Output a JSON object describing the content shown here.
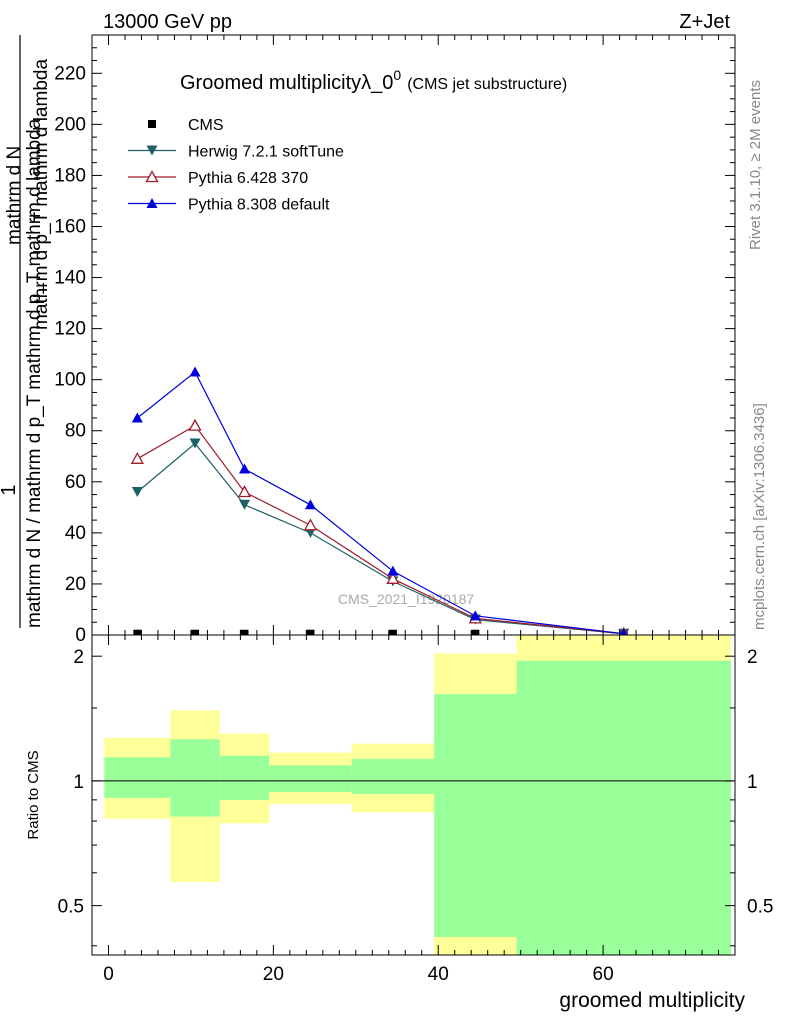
{
  "header": {
    "beam": "13000 GeV pp",
    "process": "Z+Jet",
    "title_main": "Groomed multiplicityλ_0",
    "title_sup": "0",
    "title_sub": "(CMS jet substructure)",
    "side_top": "Rivet 3.1.10, ≥ 2M events",
    "side_bottom": "mcplots.cern.ch [arXiv:1306.3436]",
    "watermark": "CMS_2021_I1920187"
  },
  "axes": {
    "ylabel_num": "1",
    "ylabel_den": "mathrm d N / mathrm d p_T mathrm d p_T mathrm d lambda",
    "ylabel_top_num": "mathrm d²N",
    "ylabel_top": "mathrm d N",
    "xlabel": "groomed multiplicity",
    "ratio_label": "Ratio to CMS"
  },
  "colors": {
    "cms": "#000000",
    "herwig": "#1f6064",
    "pythia6": "#a01d2c",
    "pythia8": "#0000dd",
    "band_inner": "#99ff99",
    "band_outer": "#ffff99"
  },
  "chart_data": [
    {
      "type": "line",
      "title": "Groomed multiplicityλ_0^0 (CMS jet substructure)",
      "xlabel": "groomed multiplicity",
      "ylabel": "1 / (mathrm d N / mathrm d p_T) · mathrm d²N / (mathrm d p_T mathrm d lambda)",
      "xlim": [
        -2,
        76
      ],
      "ylim": [
        0,
        235
      ],
      "yticks": [
        20,
        40,
        60,
        80,
        100,
        120,
        140,
        160,
        180,
        200,
        220
      ],
      "legend_position": "top-left",
      "series": [
        {
          "name": "CMS",
          "x": [
            3.5,
            10.5,
            16.5,
            24.5,
            34.5,
            44.5,
            62.5
          ],
          "values": [
            0.5,
            0.5,
            0.5,
            0.5,
            0.5,
            0.5,
            0.5
          ]
        },
        {
          "name": "Herwig 7.2.1 softTune",
          "x": [
            3.5,
            10.5,
            16.5,
            24.5,
            34.5,
            44.5,
            62.5
          ],
          "values": [
            56,
            75,
            51,
            40,
            21,
            6,
            0.5
          ]
        },
        {
          "name": "Pythia 6.428 370",
          "x": [
            3.5,
            10.5,
            16.5,
            24.5,
            34.5,
            44.5,
            62.5
          ],
          "values": [
            69,
            82,
            56,
            43,
            22,
            6.5,
            0.5
          ]
        },
        {
          "name": "Pythia 8.308 default",
          "x": [
            3.5,
            10.5,
            16.5,
            24.5,
            34.5,
            44.5,
            62.5
          ],
          "values": [
            85,
            103,
            65,
            51,
            25,
            7.5,
            0.5
          ]
        }
      ]
    },
    {
      "type": "area",
      "ylabel": "Ratio to CMS",
      "xlabel": "groomed multiplicity",
      "xlim": [
        -2,
        76
      ],
      "ylim": [
        0.38,
        2.25
      ],
      "xticks": [
        0,
        20,
        40,
        60
      ],
      "ylog": true,
      "ytick_labels": [
        "0.5",
        "1",
        "2"
      ],
      "bins": [
        {
          "x": [
            -0.5,
            7.5
          ],
          "inner": [
            0.91,
            1.14
          ],
          "outer": [
            0.81,
            1.27
          ]
        },
        {
          "x": [
            7.5,
            13.5
          ],
          "inner": [
            0.82,
            1.26
          ],
          "outer": [
            0.57,
            1.48
          ]
        },
        {
          "x": [
            13.5,
            19.5
          ],
          "inner": [
            0.9,
            1.15
          ],
          "outer": [
            0.79,
            1.3
          ]
        },
        {
          "x": [
            19.5,
            29.5
          ],
          "inner": [
            0.94,
            1.09
          ],
          "outer": [
            0.88,
            1.17
          ]
        },
        {
          "x": [
            29.5,
            39.5
          ],
          "inner": [
            0.93,
            1.13
          ],
          "outer": [
            0.84,
            1.23
          ]
        },
        {
          "x": [
            39.5,
            49.5
          ],
          "inner": [
            0.42,
            1.62
          ],
          "outer": [
            0.3,
            2.03
          ]
        },
        {
          "x": [
            49.5,
            75.5
          ],
          "inner": [
            0.3,
            1.95
          ],
          "outer": [
            0.3,
            3.0
          ]
        }
      ]
    }
  ]
}
